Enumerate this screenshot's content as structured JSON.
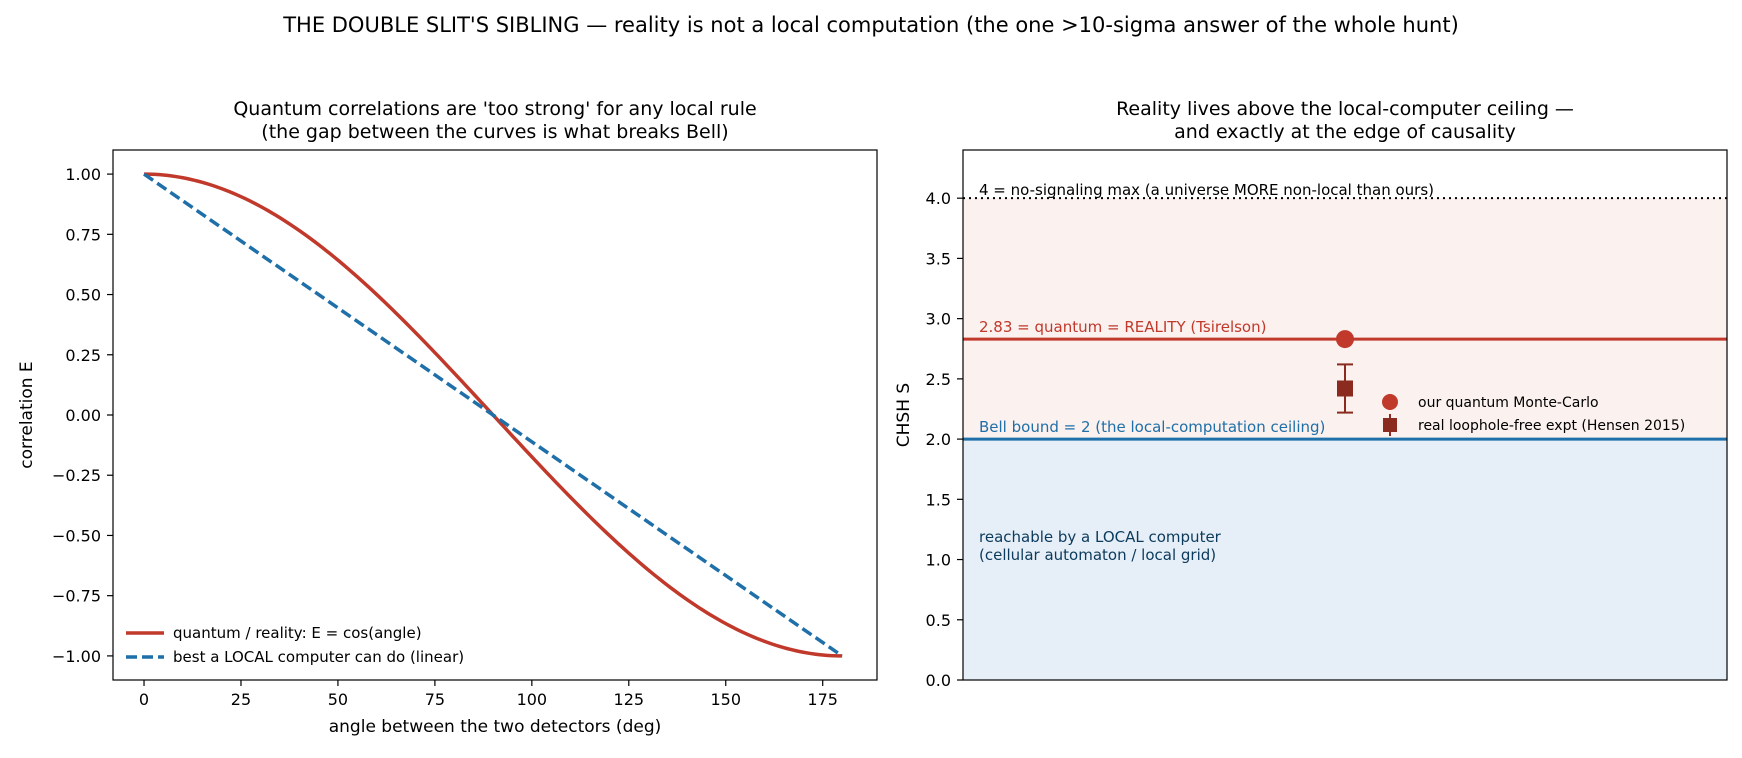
{
  "suptitle": "THE DOUBLE SLIT'S SIBLING — reality is not a local computation (the one >10-sigma answer of the whole hunt)",
  "colors": {
    "quantum": "#c0392b",
    "local": "#1f6fa8",
    "expt": "#8b2a1e",
    "axis": "#000000",
    "quantum_region": "#fbf1ef",
    "local_region": "#e6eff7",
    "local_region_text": "#0b3a5c"
  },
  "chart_data": [
    {
      "type": "line",
      "title_lines": [
        "Quantum correlations are 'too strong' for any local rule",
        "(the gap between the curves is what breaks Bell)"
      ],
      "xlabel": "angle between the two detectors  (deg)",
      "ylabel": "correlation  E",
      "xlim": [
        -8,
        189
      ],
      "ylim": [
        -1.1,
        1.1
      ],
      "xticks": [
        0,
        25,
        50,
        75,
        100,
        125,
        150,
        175
      ],
      "xtick_labels": [
        "0",
        "25",
        "50",
        "75",
        "100",
        "125",
        "150",
        "175"
      ],
      "yticks": [
        1.0,
        0.75,
        0.5,
        0.25,
        0.0,
        -0.25,
        -0.5,
        -0.75,
        -1.0
      ],
      "ytick_labels": [
        "1.00",
        "0.75",
        "0.50",
        "0.25",
        "0.00",
        "−0.25",
        "−0.50",
        "−0.75",
        "−1.00"
      ],
      "grid": false,
      "legend_position": "lower-left",
      "series": [
        {
          "name": "quantum / reality:  E = cos(angle)",
          "style": "solid",
          "x": [
            0,
            10,
            20,
            30,
            40,
            50,
            60,
            70,
            80,
            90,
            100,
            110,
            120,
            130,
            140,
            150,
            160,
            170,
            180
          ],
          "y": [
            1.0,
            0.985,
            0.94,
            0.866,
            0.766,
            0.643,
            0.5,
            0.342,
            0.174,
            0.0,
            -0.174,
            -0.342,
            -0.5,
            -0.643,
            -0.766,
            -0.866,
            -0.94,
            -0.985,
            -1.0
          ]
        },
        {
          "name": "best a LOCAL computer can do (linear)",
          "style": "dashed",
          "x": [
            0,
            180
          ],
          "y": [
            1.0,
            -1.0
          ]
        }
      ]
    },
    {
      "type": "scatter",
      "title_lines": [
        "Reality lives above the local-computer ceiling —",
        "and exactly at the edge of causality"
      ],
      "xlabel": "",
      "ylabel": "CHSH  S",
      "ylim": [
        0,
        4.4
      ],
      "yticks": [
        0.0,
        0.5,
        1.0,
        1.5,
        2.0,
        2.5,
        3.0,
        3.5,
        4.0
      ],
      "ytick_labels": [
        "0.0",
        "0.5",
        "1.0",
        "1.5",
        "2.0",
        "2.5",
        "3.0",
        "3.5",
        "4.0"
      ],
      "grid": false,
      "legend_position": "center-right",
      "reference_lines": [
        {
          "value": 4.0,
          "style": "dotted",
          "label": "4 = no-signaling max (a universe MORE non-local than ours)"
        },
        {
          "value": 2.83,
          "style": "solid",
          "label": "2.83 = quantum = REALITY (Tsirelson)"
        },
        {
          "value": 2.0,
          "style": "solid",
          "label": "Bell bound = 2  (the local-computation ceiling)"
        }
      ],
      "region_label_lines": [
        "reachable by a LOCAL computer",
        "(cellular automaton / local grid)"
      ],
      "points": [
        {
          "name": "our quantum Monte-Carlo",
          "marker": "circle",
          "value": 2.83
        },
        {
          "name": "real loophole-free expt (Hensen 2015)",
          "marker": "square",
          "value": 2.42,
          "error": 0.2
        }
      ]
    }
  ]
}
